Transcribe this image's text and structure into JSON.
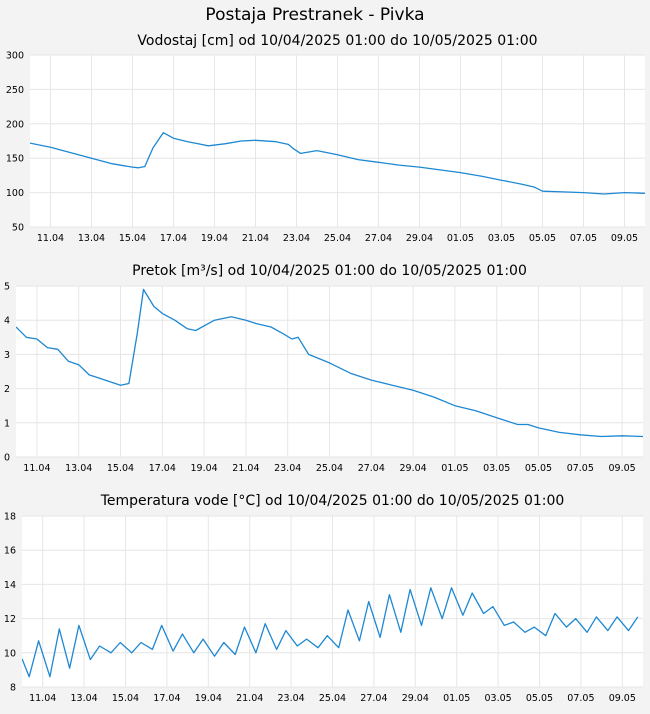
{
  "page": {
    "title": "Postaja Prestranek - Pivka"
  },
  "chart_data": [
    {
      "type": "line",
      "title": "Vodostaj [cm] od 10/04/2025 01:00 do 10/05/2025 01:00",
      "xlabel": "",
      "ylabel": "",
      "ylim": [
        50,
        300
      ],
      "yticks": [
        50,
        100,
        150,
        200,
        250,
        300
      ],
      "xlim": [
        0.0,
        30.0
      ],
      "xticks": [
        1,
        3,
        5,
        7,
        9,
        11,
        13,
        15,
        17,
        19,
        21,
        23,
        25,
        27,
        29
      ],
      "xtick_labels": [
        "11.04",
        "13.04",
        "15.04",
        "17.04",
        "19.04",
        "21.04",
        "23.04",
        "25.04",
        "27.04",
        "29.04",
        "01.05",
        "03.05",
        "05.05",
        "07.05",
        "09.05"
      ],
      "grid": true,
      "color": "#1e88d2",
      "x": [
        0,
        1,
        2,
        3,
        4,
        4.6,
        5.0,
        5.3,
        5.6,
        6.0,
        6.5,
        7.0,
        7.7,
        8.2,
        8.7,
        9.5,
        10.3,
        11.0,
        12.0,
        12.6,
        12.8,
        13.2,
        14.0,
        15.0,
        16.0,
        17.0,
        18.0,
        19.0,
        20.0,
        21.0,
        22.0,
        23.0,
        24.0,
        24.6,
        25.0,
        26.0,
        27.0,
        28.0,
        29.0,
        30.0
      ],
      "values": [
        172,
        166,
        158,
        150,
        142,
        139,
        137,
        136,
        138,
        165,
        187,
        179,
        174,
        171,
        168,
        171,
        175,
        176,
        174,
        170,
        165,
        157,
        161,
        155,
        148,
        144,
        140,
        137,
        133,
        129,
        124,
        118,
        112,
        108,
        102,
        101,
        100,
        98,
        100,
        99
      ]
    },
    {
      "type": "line",
      "title": "Pretok [m³/s] od 10/04/2025 01:00 do 10/05/2025 01:00",
      "xlabel": "",
      "ylabel": "",
      "ylim": [
        0,
        5
      ],
      "yticks": [
        0,
        1,
        2,
        3,
        4,
        5
      ],
      "xlim": [
        0.0,
        30.0
      ],
      "xticks": [
        1,
        3,
        5,
        7,
        9,
        11,
        13,
        15,
        17,
        19,
        21,
        23,
        25,
        27,
        29
      ],
      "xtick_labels": [
        "11.04",
        "13.04",
        "15.04",
        "17.04",
        "19.04",
        "21.04",
        "23.04",
        "25.04",
        "27.04",
        "29.04",
        "01.05",
        "03.05",
        "05.05",
        "07.05",
        "09.05"
      ],
      "grid": true,
      "color": "#1e88d2",
      "x": [
        0,
        0.5,
        1,
        1.5,
        2,
        2.5,
        3,
        3.5,
        4,
        4.5,
        5.0,
        5.4,
        5.8,
        6.1,
        6.6,
        7.0,
        7.6,
        8.2,
        8.6,
        9.5,
        10.3,
        11.0,
        11.5,
        12.2,
        12.8,
        13.2,
        13.5,
        14.0,
        15.0,
        16.0,
        17.0,
        18.0,
        19.0,
        20.0,
        21.0,
        22.0,
        23.0,
        24.0,
        24.5,
        25.0,
        26.0,
        27.0,
        28.0,
        29.0,
        30.0
      ],
      "values": [
        3.8,
        3.5,
        3.45,
        3.2,
        3.15,
        2.8,
        2.7,
        2.4,
        2.3,
        2.2,
        2.1,
        2.15,
        3.6,
        4.9,
        4.4,
        4.2,
        4.0,
        3.75,
        3.7,
        4.0,
        4.1,
        4.0,
        3.9,
        3.8,
        3.6,
        3.45,
        3.5,
        3.0,
        2.75,
        2.45,
        2.25,
        2.1,
        1.95,
        1.75,
        1.5,
        1.35,
        1.15,
        0.95,
        0.95,
        0.85,
        0.72,
        0.65,
        0.6,
        0.62,
        0.6
      ]
    },
    {
      "type": "line",
      "title": "Temperatura vode [°C] od 10/04/2025 01:00 do 10/05/2025 01:00",
      "xlabel": "",
      "ylabel": "",
      "ylim": [
        8,
        18
      ],
      "yticks": [
        8,
        10,
        12,
        14,
        16,
        18
      ],
      "xlim": [
        0.0,
        30.0
      ],
      "xticks": [
        1,
        3,
        5,
        7,
        9,
        11,
        13,
        15,
        17,
        19,
        21,
        23,
        25,
        27,
        29
      ],
      "xtick_labels": [
        "11.04",
        "13.04",
        "15.04",
        "17.04",
        "19.04",
        "21.04",
        "23.04",
        "25.04",
        "27.04",
        "29.04",
        "01.05",
        "03.05",
        "05.05",
        "07.05",
        "09.05"
      ],
      "grid": true,
      "color": "#1e88d2",
      "daily_peak_times": [
        0.8,
        1.8,
        2.75,
        3.75,
        4.75,
        5.75,
        6.75,
        7.75,
        8.75,
        9.75,
        10.75,
        11.75,
        12.75,
        13.75,
        14.75,
        15.75,
        16.75,
        17.75,
        18.75,
        19.75,
        20.75,
        21.75,
        22.75,
        23.75,
        24.75,
        25.75,
        26.75,
        27.75,
        28.75,
        29.75
      ],
      "daily_max": [
        10.7,
        11.4,
        11.6,
        10.4,
        10.6,
        10.6,
        11.6,
        11.1,
        10.8,
        10.6,
        11.5,
        11.7,
        11.3,
        10.8,
        11.0,
        12.5,
        13.0,
        13.4,
        13.7,
        13.8,
        13.8,
        13.5,
        12.7,
        11.8,
        11.5,
        12.3,
        12.0,
        12.1,
        12.1,
        12.1
      ],
      "daily_min": [
        8.6,
        8.6,
        9.1,
        9.6,
        10.0,
        10.0,
        10.2,
        10.1,
        10.0,
        9.8,
        9.9,
        10.0,
        10.2,
        10.4,
        10.3,
        10.3,
        10.7,
        10.9,
        11.2,
        11.6,
        12.0,
        12.2,
        12.3,
        11.6,
        11.2,
        11.0,
        11.5,
        11.2,
        11.3,
        11.3
      ]
    }
  ]
}
